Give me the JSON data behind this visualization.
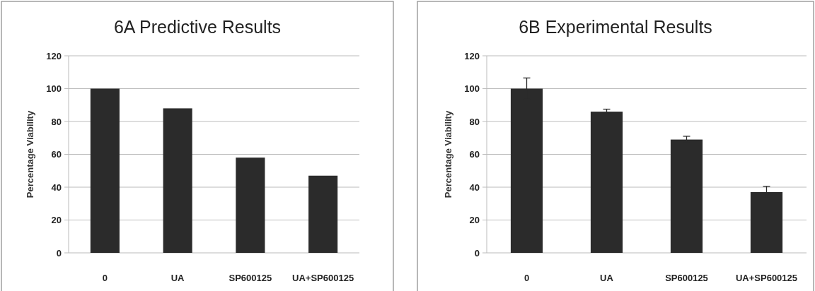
{
  "chart_data": [
    {
      "type": "bar",
      "title": "6A   Predictive Results",
      "ylabel": "Percentage Viability",
      "categories": [
        "0",
        "UA",
        "SP600125",
        "UA+SP600125"
      ],
      "values": [
        100,
        88,
        58,
        47
      ],
      "color": "#2b2b2b",
      "ylim": [
        0,
        120
      ],
      "yticks": [
        0,
        20,
        40,
        60,
        80,
        100,
        120
      ],
      "grid": "y"
    },
    {
      "type": "bar",
      "title": "6B  Experimental Results",
      "ylabel": "Percentage Viability",
      "categories": [
        "0",
        "UA",
        "SP600125",
        "UA+SP600125"
      ],
      "values": [
        100,
        86,
        69,
        37
      ],
      "errors": [
        6.5,
        1.5,
        2,
        3.5
      ],
      "color": "#2b2b2b",
      "ylim": [
        0,
        120
      ],
      "yticks": [
        0,
        20,
        40,
        60,
        80,
        100,
        120
      ],
      "grid": "y"
    }
  ]
}
